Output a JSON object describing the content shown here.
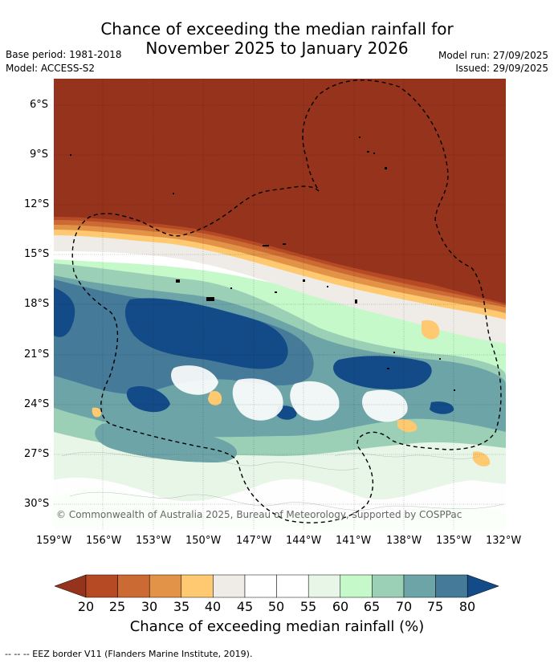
{
  "title_line1": "Chance of exceeding the median rainfall for",
  "title_line2": "November 2025 to January 2026",
  "meta": {
    "base_period": "Base period: 1981-2018",
    "model": "Model: ACCESS-S2",
    "model_run": "Model run: 27/09/2025",
    "issued": "Issued: 29/09/2025"
  },
  "copyright": "© Commonwealth of Australia 2025, Bureau of Meteorology, supported by COSPPac",
  "lat_ticks": [
    "6°S",
    "9°S",
    "12°S",
    "15°S",
    "18°S",
    "21°S",
    "24°S",
    "27°S",
    "30°S"
  ],
  "lon_ticks": [
    "159°W",
    "156°W",
    "153°W",
    "150°W",
    "147°W",
    "144°W",
    "141°W",
    "138°W",
    "135°W",
    "132°W"
  ],
  "colorbar": {
    "label": "Chance of exceeding median rainfall (%)",
    "ticks": [
      "20",
      "25",
      "30",
      "35",
      "40",
      "45",
      "50",
      "55",
      "60",
      "65",
      "70",
      "75",
      "80"
    ],
    "colors": [
      "#96331d",
      "#b54a24",
      "#cc6a34",
      "#e39347",
      "#fec970",
      "#efebe6",
      "#ffffff",
      "#ffffff",
      "#e8f6e7",
      "#c6f9c9",
      "#9bd0b6",
      "#6da4a7",
      "#457a99",
      "#134b88"
    ]
  },
  "footer": "-- -- -- EEZ border V11 (Flanders Marine Institute, 2019)."
}
